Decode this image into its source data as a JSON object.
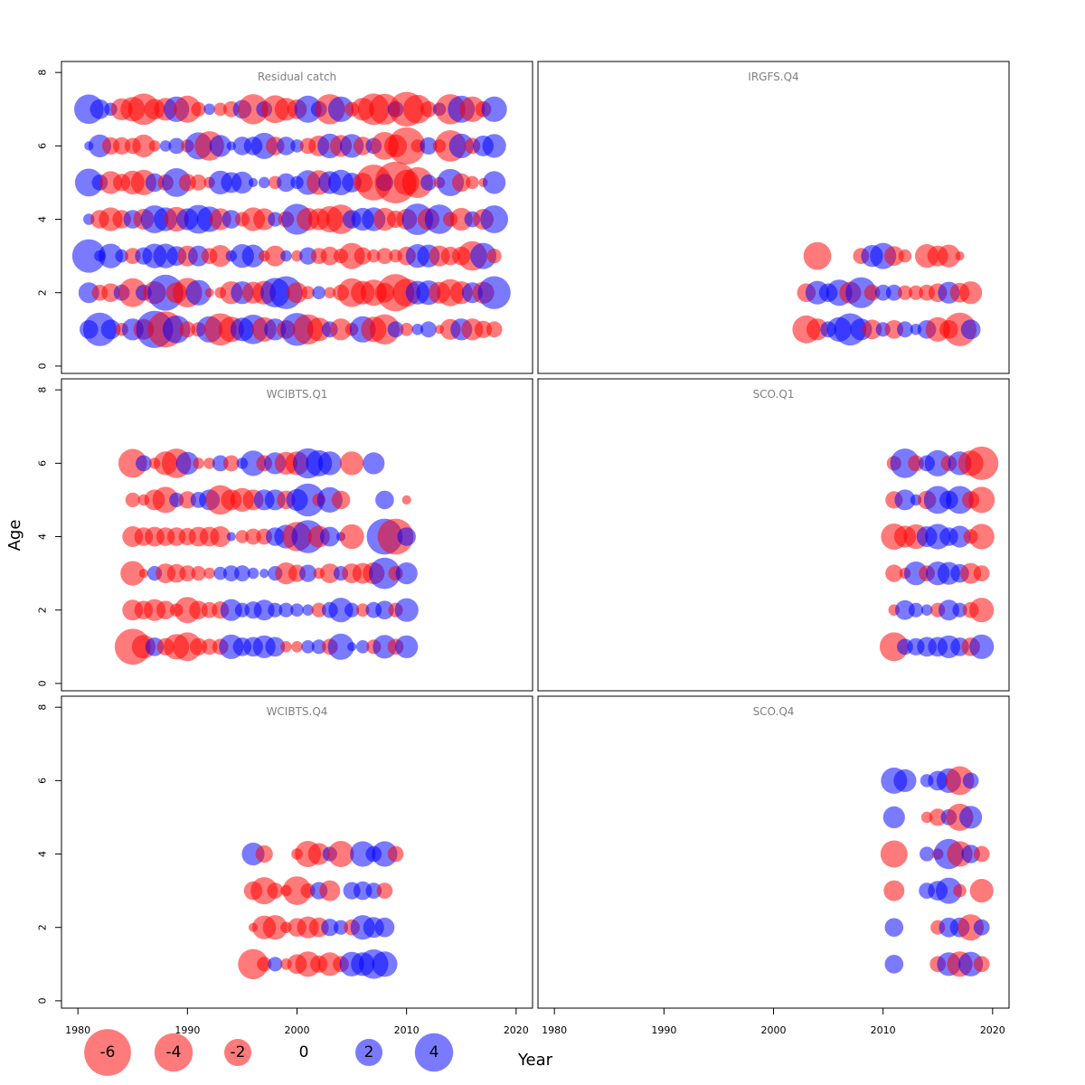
{
  "chart_data": {
    "type": "bubble-residual",
    "x_axis": {
      "label": "Year",
      "range": [
        1978.5,
        2021.5
      ],
      "ticks": [
        "1980",
        "1990",
        "2000",
        "2010",
        "2020"
      ]
    },
    "y_axis": {
      "label": "Age",
      "range": [
        -0.2,
        8.3
      ],
      "ticks": [
        "0",
        "2",
        "4",
        "6",
        "8"
      ]
    },
    "colors": {
      "positive": "#0000ff",
      "negative": "#ff0000"
    },
    "legend": {
      "entries": [
        {
          "label": "-6",
          "value": -6
        },
        {
          "label": "-4",
          "value": -4
        },
        {
          "label": "-2",
          "value": -2
        },
        {
          "label": "0",
          "value": 0
        },
        {
          "label": "2",
          "value": 2
        },
        {
          "label": "4",
          "value": 4
        }
      ]
    },
    "panels": [
      {
        "title": "Residual catch",
        "series": [
          {
            "age": 1,
            "start_year": 1981,
            "residuals": [
              0.8,
              2.6,
              0.9,
              -0.4,
              1.1,
              -1.0,
              3.2,
              -3.0,
              1.8,
              -0.6,
              -0.5,
              1.6,
              -2.4,
              -1.5,
              1.3,
              2.0,
              -1.4,
              1.1,
              -0.8,
              2.5,
              -2.1,
              -1.3,
              0.6,
              -1.1,
              -0.4,
              1.6,
              -1.5,
              -2.1,
              0.6,
              -0.4,
              0.3,
              0.6,
              -0.2,
              -1.0,
              1.1,
              -1.1,
              -0.7,
              -0.6
            ]
          },
          {
            "age": 2,
            "start_year": 1981,
            "residuals": [
              1.0,
              -0.6,
              -0.8,
              0.6,
              -1.9,
              0.6,
              -1.2,
              3.0,
              -1.0,
              -2.0,
              1.5,
              -0.2,
              -0.3,
              -1.2,
              1.2,
              -1.1,
              -1.3,
              2.0,
              2.5,
              -1.0,
              -0.4,
              0.4,
              -0.3,
              -0.6,
              -1.9,
              -1.3,
              -1.6,
              -0.9,
              -3.2,
              -1.8,
              1.3,
              1.4,
              -1.1,
              -1.7,
              -1.2,
              1.0,
              -1.1,
              2.5
            ]
          },
          {
            "age": 3,
            "start_year": 1981,
            "residuals": [
              2.6,
              0.3,
              1.4,
              0.4,
              -0.6,
              0.7,
              1.4,
              1.4,
              0.9,
              -1.0,
              1.0,
              -0.6,
              -1.1,
              0.3,
              1.3,
              1.2,
              -0.3,
              -1.0,
              0.3,
              -0.3,
              0.7,
              -0.6,
              -0.8,
              -0.5,
              -1.6,
              -0.7,
              -0.4,
              -0.6,
              -0.4,
              -0.8,
              1.3,
              1.2,
              -1.0,
              -0.8,
              -0.8,
              -2.0,
              1.6,
              -0.5
            ]
          },
          {
            "age": 4,
            "start_year": 1981,
            "residuals": [
              0.3,
              -0.8,
              -1.3,
              -0.8,
              0.8,
              -1.0,
              1.8,
              1.3,
              -1.4,
              1.1,
              1.9,
              1.5,
              -1.1,
              0.8,
              -0.5,
              -1.3,
              -1.1,
              0.5,
              -0.6,
              2.2,
              -1.2,
              -1.1,
              -1.6,
              -2.0,
              0.8,
              1.2,
              1.3,
              -1.2,
              -0.7,
              -1.0,
              2.3,
              -1.1,
              2.0,
              -0.5,
              -1.2,
              0.6,
              -1.0,
              1.8
            ]
          },
          {
            "age": 5,
            "start_year": 1981,
            "residuals": [
              1.8,
              0.6,
              -1.2,
              -0.7,
              -1.3,
              -1.5,
              0.8,
              -0.6,
              1.9,
              -0.7,
              -0.6,
              -0.3,
              1.3,
              1.0,
              1.1,
              0.2,
              0.3,
              -0.4,
              0.8,
              0.4,
              1.4,
              -1.4,
              1.2,
              1.5,
              0.9,
              -0.9,
              -3.0,
              0.7,
              -4.0,
              -1.5,
              -2.2,
              0.6,
              -0.3,
              1.7,
              -0.8,
              -0.4,
              -0.2,
              1.2
            ]
          },
          {
            "age": 6,
            "start_year": 1981,
            "residuals": [
              0.2,
              1.2,
              -0.7,
              -0.7,
              -0.6,
              -1.2,
              -0.3,
              0.3,
              0.6,
              -0.4,
              1.7,
              -2.0,
              1.1,
              0.2,
              0.8,
              0.8,
              1.6,
              -0.8,
              0.8,
              0.4,
              -0.6,
              -1.0,
              1.4,
              -1.1,
              1.3,
              -0.8,
              0.6,
              -1.8,
              -1.2,
              -3.2,
              -0.4,
              0.7,
              -0.4,
              -2.3,
              1.4,
              -0.6,
              1.0,
              1.3
            ]
          },
          {
            "age": 7,
            "start_year": 1981,
            "residuals": [
              2.0,
              0.9,
              0.4,
              -1.1,
              -1.4,
              -2.3,
              -1.0,
              -1.2,
              1.5,
              -1.7,
              -0.5,
              0.3,
              -0.4,
              -0.6,
              0.8,
              -2.1,
              0.6,
              -1.8,
              -1.2,
              -0.9,
              1.7,
              0.6,
              -2.1,
              1.5,
              -0.5,
              -1.2,
              -2.3,
              -2.2,
              0.6,
              -2.8,
              -1.9,
              -0.6,
              0.4,
              -2.1,
              1.7,
              -1.5,
              -0.6,
              1.5
            ]
          }
        ]
      },
      {
        "title": "IRGFS.Q4",
        "series": [
          {
            "age": 1,
            "start_year": 2003,
            "residuals": [
              -1.8,
              -1.1,
              0.6,
              1.4,
              2.4,
              1.1,
              -0.9,
              0.5,
              -0.8,
              0.6,
              0.3,
              0.8,
              -1.4,
              -0.8,
              -2.6,
              0.9
            ]
          },
          {
            "age": 2,
            "start_year": 2003,
            "residuals": [
              -0.8,
              1.3,
              0.8,
              1.6,
              -1.1,
              2.2,
              -0.6,
              0.6,
              0.6,
              -0.5,
              -0.5,
              -0.6,
              -0.8,
              1.1,
              -0.9,
              -1.2
            ]
          },
          {
            "age": 3,
            "start_year": 2004,
            "residuals": [
              -1.8,
              null,
              null,
              null,
              -0.6,
              1.1,
              1.6,
              -0.9,
              -0.4,
              null,
              -1.3,
              -1.0,
              -1.2,
              -0.2
            ]
          }
        ]
      },
      {
        "title": "WCIBTS.Q1",
        "series": [
          {
            "age": 1,
            "start_year": 1985,
            "residuals": [
              -3.0,
              -1.3,
              0.8,
              -0.7,
              -1.5,
              -1.9,
              -0.7,
              -0.6,
              -0.6,
              1.4,
              0.8,
              0.9,
              1.2,
              0.9,
              -0.3,
              -0.3,
              0.4,
              0.5,
              -0.6,
              1.6,
              0.2,
              0.4,
              -0.5,
              1.3,
              -0.6,
              1.2
            ]
          },
          {
            "age": 2,
            "start_year": 1985,
            "residuals": [
              -1.0,
              -0.8,
              -1.1,
              -0.8,
              -0.4,
              -1.6,
              -0.8,
              -0.6,
              -0.7,
              1.1,
              0.5,
              0.7,
              1.0,
              0.5,
              0.5,
              0.4,
              0.3,
              -0.5,
              0.6,
              1.4,
              0.5,
              -0.4,
              0.6,
              0.8,
              -0.5,
              1.3
            ]
          },
          {
            "age": 3,
            "start_year": 1985,
            "residuals": [
              -1.4,
              -0.2,
              0.5,
              -0.9,
              -0.8,
              -0.6,
              -0.5,
              -0.3,
              0.4,
              0.6,
              0.6,
              0.3,
              0.2,
              0.5,
              -1.1,
              -0.7,
              0.7,
              -0.3,
              -0.9,
              0.5,
              -0.9,
              -1.0,
              -1.1,
              2.3,
              -0.5,
              1.1
            ]
          },
          {
            "age": 4,
            "start_year": 1985,
            "residuals": [
              -1.0,
              -0.8,
              -0.9,
              -0.8,
              -0.8,
              -0.7,
              -0.9,
              -0.9,
              -1.0,
              0.2,
              -0.4,
              -0.6,
              -0.6,
              0.8,
              1.3,
              -2.0,
              2.5,
              -1.1,
              0.9,
              0.2,
              -1.4,
              null,
              null,
              3.0,
              -3.0,
              0.8
            ]
          },
          {
            "age": 5,
            "start_year": 1985,
            "residuals": [
              -0.5,
              -0.3,
              -1.0,
              -1.6,
              0.5,
              -0.7,
              0.6,
              1.0,
              -2.0,
              -1.0,
              -1.3,
              -1.0,
              1.0,
              1.0,
              -0.8,
              1.1,
              2.5,
              -0.4,
              1.5,
              -0.8,
              null,
              null,
              null,
              0.8,
              null,
              -0.2
            ]
          },
          {
            "age": 6,
            "start_year": 1985,
            "residuals": [
              -1.9,
              0.6,
              -0.3,
              -1.3,
              -2.0,
              1.2,
              -0.3,
              -0.3,
              0.6,
              -0.6,
              0.3,
              1.5,
              -0.6,
              1.1,
              -1.2,
              -1.3,
              2.1,
              1.6,
              1.3,
              null,
              -1.3,
              null,
              1.1
            ]
          }
        ]
      },
      {
        "title": "SCO.Q1",
        "series": [
          {
            "age": 1,
            "start_year": 2011,
            "residuals": [
              -1.9,
              0.6,
              0.7,
              0.9,
              0.9,
              1.2,
              0.8,
              -0.8,
              1.4
            ]
          },
          {
            "age": 2,
            "start_year": 2011,
            "residuals": [
              -0.3,
              0.9,
              0.5,
              0.3,
              -0.5,
              1.0,
              0.5,
              -0.6,
              -1.4
            ]
          },
          {
            "age": 3,
            "start_year": 2011,
            "residuals": [
              -0.7,
              -0.3,
              1.3,
              -0.6,
              1.3,
              1.2,
              0.8,
              -1.0,
              -0.6
            ]
          },
          {
            "age": 4,
            "start_year": 2011,
            "residuals": [
              -1.6,
              -1.1,
              -1.4,
              1.0,
              1.5,
              0.8,
              1.1,
              -0.5,
              -1.5
            ]
          },
          {
            "age": 5,
            "start_year": 2011,
            "residuals": [
              -0.7,
              1.0,
              0.3,
              -0.8,
              1.8,
              0.8,
              1.8,
              -0.7,
              -1.6
            ]
          },
          {
            "age": 6,
            "start_year": 2011,
            "residuals": [
              -0.5,
              2.0,
              -0.6,
              0.6,
              1.6,
              -0.6,
              1.3,
              -1.5,
              -2.6
            ]
          }
        ]
      },
      {
        "title": "WCIBTS.Q4",
        "series": [
          {
            "age": 1,
            "start_year": 1996,
            "residuals": [
              -2.1,
              -0.5,
              0.5,
              -0.3,
              -0.9,
              -1.5,
              -0.7,
              -1.3,
              -0.6,
              1.4,
              1.3,
              2.0,
              1.5
            ]
          },
          {
            "age": 2,
            "start_year": 1996,
            "residuals": [
              -0.2,
              -1.3,
              -1.4,
              -0.3,
              -0.8,
              -1.1,
              -0.9,
              0.7,
              0.5,
              -0.6,
              1.4,
              1.0,
              0.9
            ]
          },
          {
            "age": 3,
            "start_year": 1996,
            "residuals": [
              -0.8,
              -1.7,
              -0.6,
              -0.3,
              -1.9,
              -0.5,
              0.7,
              -1.0,
              null,
              0.7,
              0.8,
              0.6,
              -0.6
            ]
          },
          {
            "age": 4,
            "start_year": 1996,
            "residuals": [
              1.2,
              -0.7,
              null,
              null,
              -0.3,
              -1.6,
              -1.1,
              0.5,
              -1.6,
              null,
              1.5,
              0.6,
              1.5,
              -0.6
            ]
          }
        ]
      },
      {
        "title": "SCO.Q4",
        "series": [
          {
            "age": 1,
            "start_year": 2011,
            "residuals": [
              0.8,
              null,
              null,
              null,
              -0.6,
              1.3,
              -1.5,
              1.4,
              -0.6
            ]
          },
          {
            "age": 2,
            "start_year": 2011,
            "residuals": [
              0.8,
              null,
              null,
              null,
              -0.5,
              0.9,
              0.9,
              -1.6,
              0.6
            ]
          },
          {
            "age": 3,
            "start_year": 2011,
            "residuals": [
              -1.0,
              null,
              null,
              0.6,
              0.9,
              1.6,
              -0.4,
              null,
              -1.3
            ]
          },
          {
            "age": 4,
            "start_year": 2011,
            "residuals": [
              -1.7,
              null,
              null,
              0.5,
              -0.3,
              2.1,
              -1.5,
              0.8,
              -0.6
            ]
          },
          {
            "age": 5,
            "start_year": 2011,
            "residuals": [
              1.1,
              null,
              null,
              -0.3,
              -0.7,
              0.6,
              -1.7,
              1.2,
              null
            ]
          },
          {
            "age": 6,
            "start_year": 2011,
            "residuals": [
              1.6,
              1.2,
              null,
              0.4,
              0.9,
              1.4,
              -1.9,
              0.6,
              null
            ]
          }
        ]
      }
    ]
  }
}
